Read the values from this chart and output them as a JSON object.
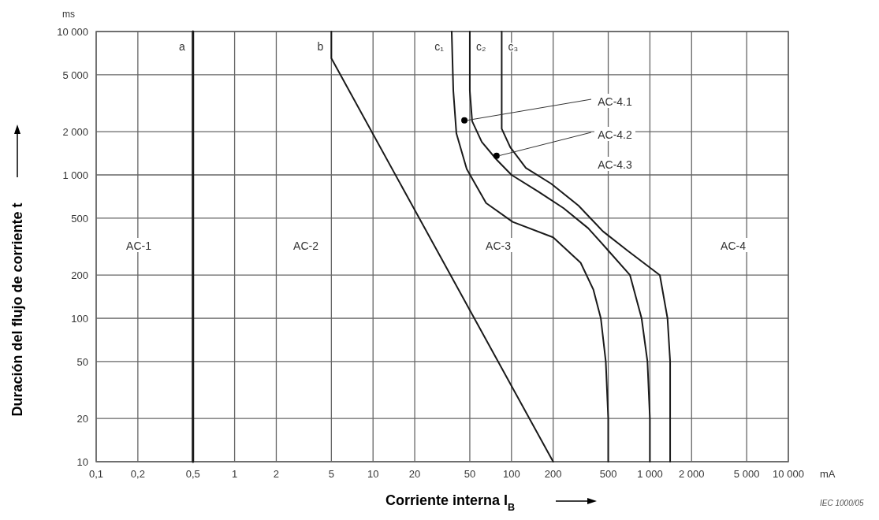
{
  "chart_data": {
    "type": "line",
    "xlabel": "Corriente interna I$_{B}$",
    "ylabel": "Duración del flujo de corriente t",
    "log": "xy",
    "grid": true,
    "xlim": [
      0.1,
      10000
    ],
    "ylim": [
      10,
      10000
    ],
    "xticks": [
      {
        "value": 0.1,
        "label": "0,1"
      },
      {
        "value": 0.2,
        "label": "0,2"
      },
      {
        "value": 0.5,
        "label": "0,5"
      },
      1,
      2,
      5,
      10,
      20,
      50,
      100,
      200,
      500,
      {
        "value": 1000,
        "label": "1 000"
      },
      {
        "value": 2000,
        "label": "2 000"
      },
      {
        "value": 5000,
        "label": "5 000"
      },
      {
        "value": 10000,
        "label": "10 000"
      }
    ],
    "yticks": [
      10,
      20,
      50,
      100,
      200,
      500,
      {
        "value": 1000,
        "label": "1 000"
      },
      {
        "value": 2000,
        "label": "2 000"
      },
      {
        "value": 5000,
        "label": "5 000"
      },
      {
        "value": 10000,
        "label": "10 000"
      }
    ],
    "series": [
      {
        "name": "a",
        "color": "#1a1a1a",
        "x": [
          0.5,
          0.5
        ],
        "values": [
          10000,
          10
        ]
      },
      {
        "name": "b",
        "color": "#1a1a1a",
        "x": [
          5,
          5,
          200
        ],
        "values": [
          10000,
          6500,
          10
        ]
      },
      {
        "name": "c₁",
        "color": "#1a1a1a",
        "x": [
          37,
          38,
          40,
          47.5,
          65.6,
          102,
          200,
          316,
          390,
          442,
          480,
          500,
          500
        ],
        "values": [
          10000,
          3870,
          1950,
          1100,
          636,
          470,
          367,
          244,
          159,
          100,
          50,
          20,
          10
        ]
      },
      {
        "name": "c₂",
        "color": "#1a1a1a",
        "x": [
          50,
          50,
          52,
          61,
          78,
          100,
          156,
          238,
          358,
          500,
          718,
          871,
          960,
          1000,
          1000
        ],
        "values": [
          10000,
          3870,
          2370,
          1700,
          1280,
          1000,
          766,
          586,
          425,
          297,
          200,
          100,
          50,
          20,
          10
        ]
      },
      {
        "name": "c₃",
        "color": "#1a1a1a",
        "x": [
          85,
          85,
          98,
          127,
          193,
          305,
          458,
          688,
          1180,
          1340,
          1400,
          1400
        ],
        "values": [
          10000,
          2100,
          1560,
          1120,
          870,
          611,
          404,
          297,
          200,
          100,
          50,
          10
        ]
      },
      {
        "type": "scatter",
        "marker": "circle",
        "color": "#000000",
        "x": [
          45.7,
          78
        ],
        "values": [
          2400,
          1360
        ]
      }
    ],
    "annotations": [
      {
        "text": "AC-4.1",
        "x": 45.7,
        "y": 2400
      },
      {
        "text": "AC-4.2",
        "x": 78,
        "y": 1360
      },
      "AC-4.3",
      "AC-1",
      "AC-2",
      "AC-3",
      "AC-4",
      "ms",
      "mA",
      "IEC 1000/05"
    ]
  }
}
